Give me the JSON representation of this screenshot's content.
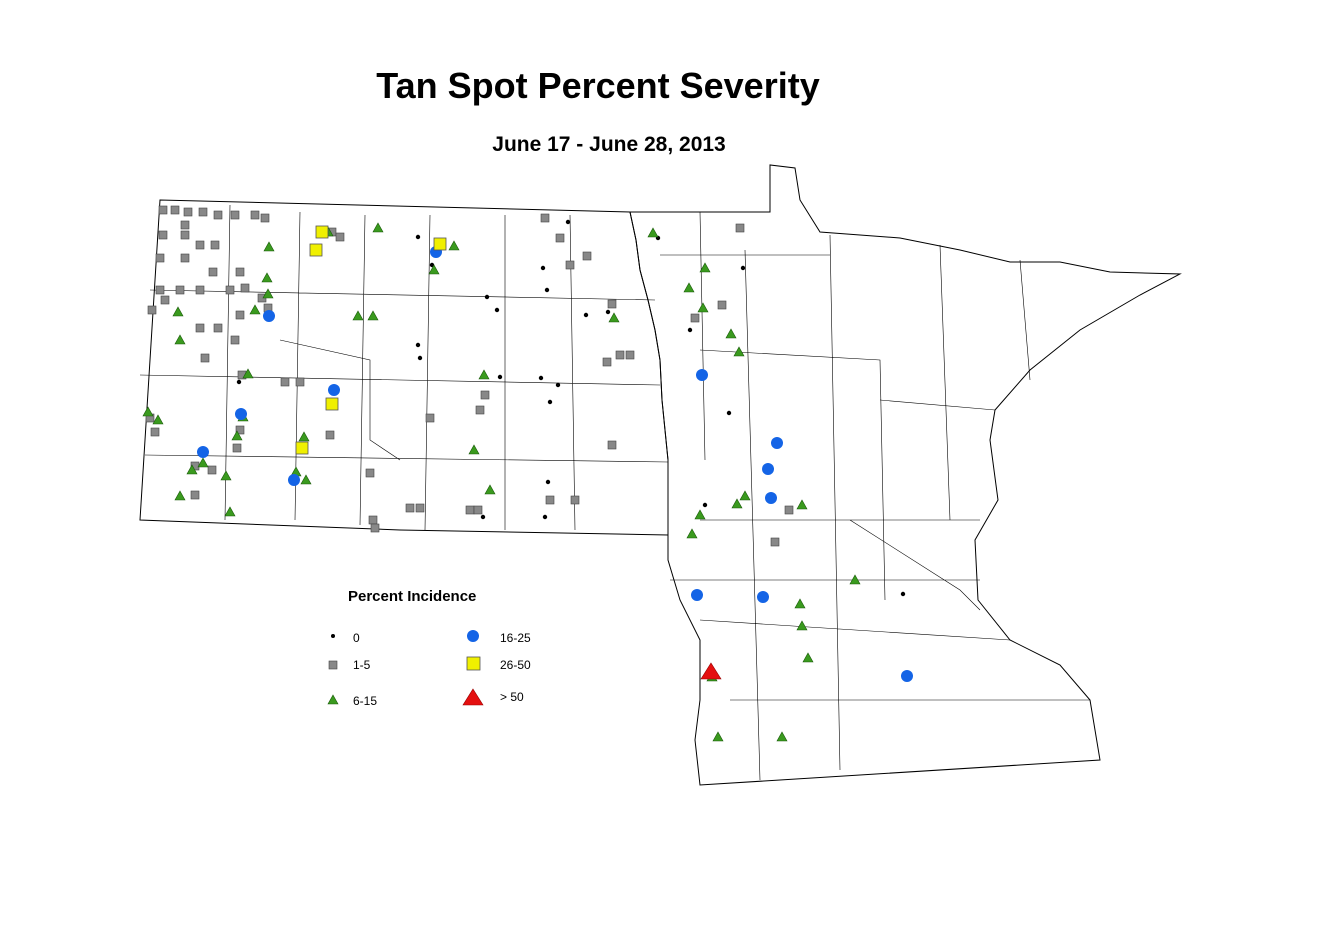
{
  "header": {
    "title": "Tan Spot Percent Severity",
    "subtitle": "June 17 - June 28, 2013"
  },
  "legend": {
    "title": "Percent Incidence",
    "items": [
      {
        "label": "0"
      },
      {
        "label": "1-5"
      },
      {
        "label": "6-15"
      },
      {
        "label": "16-25"
      },
      {
        "label": "26-50"
      },
      {
        "label": "> 50"
      }
    ]
  }
}
